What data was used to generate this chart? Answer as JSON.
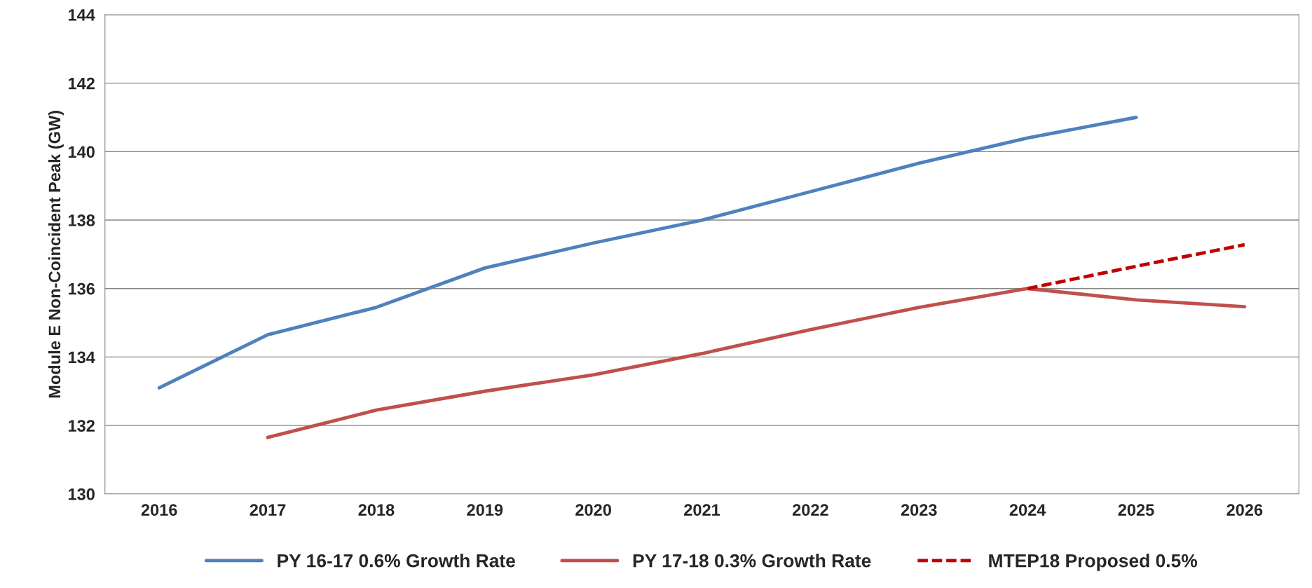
{
  "chart_data": {
    "type": "line",
    "ylabel": "Module E Non-Coincident Peak (GW)",
    "categories": [
      "2016",
      "2017",
      "2018",
      "2019",
      "2020",
      "2021",
      "2022",
      "2023",
      "2024",
      "2025",
      "2026"
    ],
    "series": [
      {
        "name": "PY 16-17 0.6% Growth Rate",
        "color": "#4f81bd",
        "values": [
          133.1,
          134.65,
          135.45,
          136.6,
          137.33,
          138.0,
          138.83,
          139.66,
          140.4,
          141.0,
          null
        ]
      },
      {
        "name": "PY 17-18 0.3% Growth Rate",
        "color": "#c0504d",
        "values": [
          null,
          131.65,
          132.45,
          133.0,
          133.48,
          134.1,
          134.8,
          135.45,
          136.0,
          135.67,
          135.47
        ]
      },
      {
        "name": "MTEP18 Proposed 0.5%",
        "color": "#c00000",
        "line_style": "dashed",
        "values": [
          null,
          null,
          null,
          null,
          null,
          null,
          null,
          null,
          136.0,
          136.65,
          137.28
        ]
      }
    ],
    "ylim": [
      130,
      144
    ],
    "yticks": [
      130,
      132,
      134,
      136,
      138,
      140,
      142,
      144
    ],
    "grid": "y",
    "legend": "bottom",
    "marker": "none"
  }
}
